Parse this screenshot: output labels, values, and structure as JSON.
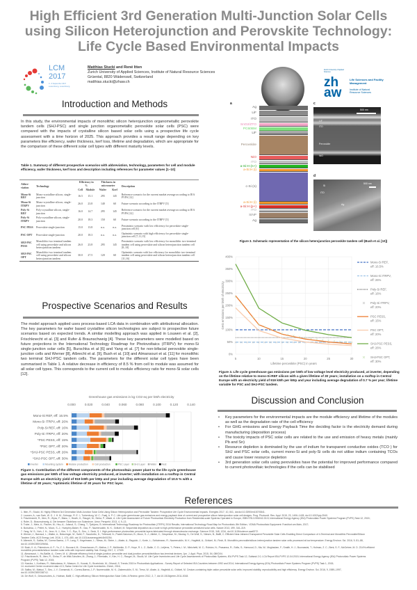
{
  "title": [
    "High Efficient 3rd Generation Multi-Junction Solar Cells",
    "using Silicon Heterojunction and Perovskite Technology:",
    "Life Cycle Based Environmental Impacts"
  ],
  "header": {
    "conf_logo": "LCM",
    "conf_year": "2017",
    "conf_dates": "3 - 6 September 2017",
    "conf_place": "Luxembourg, Luxembourg",
    "author1": "Matthias Stucki",
    "author_and": " and René Itten",
    "affiliation": "Zurich University of Applied Sciences, Institute of Natural Resource Sciences",
    "address": "Grüental, 8820 Wädenswil, Switzerland",
    "email": "matthias.stucki@zhaw.ch",
    "zhaw_small": "Zurich University of Applied Sciences",
    "zhaw_logo": "zh aw",
    "zhaw_dept": "Life Sciences and Facility Management",
    "zhaw_inst": "Institute of Natural Resource Sciences",
    "brand_color": "#0064a6"
  },
  "intro": {
    "heading": "Introduction and Methods",
    "text": "In this study, the environmental impacts of monolithic silicon heterojunction organometallic perovskite tandem cells (SHJ-PSC) and single junction organometallic perovskite solar cells (PSC) were compared with the impacts of crystalline silicon based solar cells using a prospective life cycle assessment with a time horizon of 2025. This approach provides a result range depending on key parameters like efficiency, wafer thickness, kerf loss, lifetime and degradation, which are appropriate for the comparison of these different solar cell types with different maturity levels."
  },
  "table": {
    "caption": "Table 1. Summary of different prospective scenarios with abbreviation, technology, parameters for cell and module efficiency, wafer thickness, kerf loss and description including references for parameter values [1–10]",
    "headers": {
      "abbr": "Abbre-viation",
      "tech": "Technology",
      "eff": "Efficiency in %",
      "cell": "Cell",
      "module": "Module",
      "thick": "Thickness in micrometer",
      "wafer": "Wafer",
      "kerf": "Kerf",
      "desc": "Description"
    },
    "rows": [
      [
        "Mono-Si REF",
        "Mono-crystalline silicon, single-junction",
        "16.5",
        "15.1",
        "295",
        "145",
        "Reference scenario for the current market average according to IEA PVPS [12]"
      ],
      [
        "Mono-Si ITRPV",
        "Mono-crystalline silicon, single-junction",
        "26.0",
        "23.8",
        "140",
        "60",
        "Future scenario according to the ITRPV [5]"
      ],
      [
        "Poly-Si REF",
        "Poly-crystalline silicon, single-junction",
        "16.0",
        "14.7",
        "295",
        "145",
        "Reference scenario for the current market average according to IEA PVPS [12]"
      ],
      [
        "Poly-Si ITRPV",
        "Poly-crystalline silicon, single-junction",
        "20.0",
        "18.3",
        "150",
        "60",
        "Future scenario according to the ITRPV [5]"
      ],
      [
        "PSC PESS",
        "Perovskite single-junction",
        "15.0",
        "13.8",
        "n.a.",
        "n.a.",
        "Pessimistic scenario with low efficiency for perovskite single-junction cell [6]"
      ],
      [
        "PSC OPT",
        "Perovskite single-junction",
        "20.0",
        "18.3",
        "n.a.",
        "n.a.",
        "Optimistic scenario with high efficiency for perovskite single-junction cell [7,11,15]"
      ],
      [
        "SHJ-PSC PESS",
        "Monolithic two terminal tandem cell using perovskite and silicon heterojunction tandem",
        "26.0",
        "23.8",
        "295",
        "145",
        "Pessimistic scenario with low efficiency for monolithic two-terminal tandem cell using perovskite and silicon heterojunction tandem cell [8–10]"
      ],
      [
        "SHJ-PSC OPT",
        "Monolithic two terminal tandem cell using perovskite and silicon heterojunction tandem",
        "30.0",
        "27.5",
        "120",
        "60",
        "Optimistic scenario with low efficiency for monolithic two-terminal tandem cell using perovskite and silicon heterojunction tandem cell [11,16]"
      ]
    ]
  },
  "results": {
    "heading": "Prospective Scenarios and Results",
    "text": "The model approach applied uses process-based LCA data in combination with attributional allocation. The key parameters for wafer based crystalline silicon technologies are subject to prospective future scenarios based on expected trends. A similar modelling approach was applied in Louwen et al. [2], Frischknecht et al. [3] and Rufer & Braunschweig [4]. These key parameters were modelled based on future projections in the International Technology Roadmap for Photovoltaics (ITRPV) for mono-Si single-junction solar cells [5], Burschka et al [6] and Yang et al. [7] for non-bifacial perovskite single-junction cells and Werner [8], Albrecht et al. [9], Bush et al. [10] and Almansouri et al. [11] for monolithic two terminal SHJ-PSC tandem cells. The parameters for the different solar cell types have been summarised in Table 1. A relative decrease in efficiency of 8.5 % from cell to module was assumed for all solar cell types. This corresponds to the current cell to module efficiency ratio for mono-Si solar cells [12].",
    "fig1_caption": "Figure 1. Contribution of the different components of the photovoltaic power plant to the life cycle greenhouse gas emissions per kWh of low voltage electricity produced, at inverter; with installation on a rooftop in Central Europe with an electricity yield of 919 kWh per kWp and year including average degradation of 10.5 % with a lifetime of 30 years; *optimistic lifetime of 30 years for PSC layer."
  },
  "fig3a": {
    "label_a": "a",
    "label_c": "c",
    "label_d": "d",
    "layers": [
      {
        "name": "Ag",
        "color": "#6b6b6b",
        "text": "#666"
      },
      {
        "name": "LiF",
        "color": "#8a8a8a",
        "text": "#666"
      },
      {
        "name": "ITO",
        "color": "#bdbdbd",
        "text": "#666"
      },
      {
        "name": "SnO2/ZTO",
        "color": "#f4a6c8",
        "text": "#e986b4"
      },
      {
        "name": "PC60BM",
        "color": "#7fe07f",
        "text": "#6dd66d"
      },
      {
        "name": "LiF",
        "color": "#8a8a8a",
        "text": "#666"
      },
      {
        "name": "Perovskite",
        "color": "#a78463",
        "text": "#9a8a7a"
      },
      {
        "name": "NiO",
        "color": "#e85a5a",
        "text": "#e04848"
      },
      {
        "name": "ITO",
        "color": "#bdbdbd",
        "text": "#aaa"
      },
      {
        "name": "a-Si:H (n+)",
        "color": "#1fb51f",
        "text": "#1fa51f"
      },
      {
        "name": "a-Si:H (i)",
        "color": "#f0962a",
        "text": "#f0962a"
      },
      {
        "name": "c-Si (n)",
        "color": "#6f68b0",
        "text": "#666"
      },
      {
        "name": "a-Si:H (i)",
        "color": "#f0962a",
        "text": "#f0962a"
      },
      {
        "name": "a-Si:H (p+)",
        "color": "#d8302a",
        "text": "#d8302a"
      },
      {
        "name": "ITO",
        "color": "#bdbdbd",
        "text": "#aaa"
      },
      {
        "name": "SiNP",
        "color": "#9c8068",
        "text": "#888"
      },
      {
        "name": "Ag",
        "color": "#6b6b6b",
        "text": "#666"
      }
    ],
    "sem_c_scale": "500 nm",
    "sem_c_labels": [
      "LiF",
      "ITO",
      "Perovskite",
      "NiO"
    ],
    "sem_d_scale": "500 nm",
    "sem_d_labels": [
      "Si",
      "ITO",
      "Ag"
    ],
    "caption": "Figure 3. Schematic representation of the silicon heterojunction perovskite tandem cell (Bush et al. [10])"
  },
  "fig3b_caption": "Figure 3. Life cycle greenhouse gas emissions per kWh of low voltage level electricity produced, at inverter, depending on the lifetime relative to mono-Si-REF silicon with a given lifetime of 30 years; installation on a rooftop in Central Europe with an electricity yield of 919 kWh per kWp and year including average degradation of 0.7 % per year; lifetime variable for PSC and SHJ-PSC tandem.",
  "discussion": {
    "heading": "Discussion and Conclusion",
    "bullets": [
      "Key parameters for the environmental impacts are the module efficiency and lifetime of the modules as well as the degradation rate of the cell efficiency",
      "For GHG emissions and Energy Payback Time the deciding factor is the electricity demand during manufacturing (deposition process)",
      "The toxicity impacts of PSC solar cells are related to the use and emission of heavy metals (mainly Pb and Sn)",
      "Resource depletion is dominated by the use of indium for transparent conductive oxides (TCO ) for SHJ and PSC solar cells, current mono-Si and poly-Si cells do not utilise indium containing TCOs and cause lower resource depletion",
      "3rd generation solar cells using perovskites have the potential for improved performance compared to current photovoltaic technologies if the cells can be stabilised"
    ]
  },
  "references": {
    "heading": "References",
    "items": [
      "1.    Itten, R.; Stucki, M. Highly Efficient 3rd Generation Multi-Junction Solar Cells Using Silicon Heterojunction and Perovskite Tandem: Prospective Life Cycle Environmental Impacts. Energies 2017, 10, 841, doi:doi:10.3390/en10070841.",
      "2.    Louwen, A.; van Sark, W. G. J. H. M.; Schropp, R. E. I.; Turkenburg, W. C.; Faaij, A. P. C. Life-cycle greenhouse gas emissions and energy payback time of current and prospective silicon heterojunction solar cell designs. Prog. Photovolt. Res. Appl. 2015, 23, 1406–1428, doi:10.1002/pip.2540.",
      "3.    Frischknecht, R.; Itten, R.; Wyss, F.; Blanc, I.; Heath, G.; Raugei, M.; Sinha, P.; Wade, A. Life Cycle Assessment of Future Photovoltaic Electricity Production from Residential-scale Systems Operated in Europe; ISBN 978-3-906042-30-5; International Energy Agency (IEA) Photovoltaic Power Systems Program (PVPS) Task 12, 2015;",
      "4.    Rufer, D.; Braunschweig, A. Die bessere Ökobilanz von  Solarstrom. Umw. Perspekt. 2013, 4, 9–13.",
      "5.    Trube, J.; Metz, A.; Fischer, M.; Hsu, A.; Julsrud, S.; Chang, T.; Tjahjono, B. International Technology Roadmap for Photovoltaic (ITRPV) 2016 Results; International Technology Road Map for Photovoltaic; 8th Edition.; VDMA Photovoltaic Equipment: Frankfurt am Main, 2017;",
      "6.    Burschka, J.; Pellet, N.; Moon, S.-J.; Humphry-Baker, R.; Gao, P.; Nazeeruddin, M. K.; Grätzel, M. Sequential deposition as a route to high-performance perovskite-sensitized solar cells. Nature 2013, 499, 316–319.",
      "7.    Yang, W. S.; Noh, J. H.; Jeon, N. J.; Kim, Y. C.; Ryu, S.; Seo, J.; Seok, S. I. High-performance photovoltaic perovskite layers fabricated through intramolecular exchange. Science 2015, 348, 1234, doi:10.1126/science.aaa9272.",
      "8.    Werner, J.; Barraud, L.; Walter, A.; Bräuninger, M.; Sahli, F.; Sacchetto, D.; Tétreault, N.; Paviet-Salomon, B.; Moon, S.-J.; Allebé, C.; Despeisse, M.; Nicolay, S.; De Wolf, S.; Niesen, B.; Ballif, C. Efficient Near-Infrared-Transparent Perovskite Solar Cells Enabling Direct Comparison of 4-Terminal and Monolithic Perovskite/Silicon",
      "Tandem Cells. ACS Energy Lett. 2016, 1, 474–480, doi:10.1021/acsenergylett.6b00254.",
      "9.    Albrecht, S.; Saliba, M.; Correa Baena, J. P.; Lang, F.; Kegelmann, L.; Mews, M.; Steier, L.; Abate, A.; Rappich, J.; Korte, L.; Schlatmann, R.; Nazeeruddin, M. K.; Hagfeldt, A.; Grätzel, M.; Rech, B. Monolithic perovskite/silicon-heterojunction tandem solar cells processed at low temperature. Energy Environ. Sci. 2016, 9, 81–88,",
      "doi:10.1039/C5EE02965A.",
      "10.   Bush, K. A.; Palmstrom, A. F.; Yu, Z. J.; Boccard, M.; Cheacharoen, R.; Mailoa, J. P.; McMeekin, D. P.; Hoye, R. L. Z.; Bailie, C. D.; Leijtens, T.; Peters, I. M.; Minichetti, M. C.; Rolston, N.; Prasanna, R.; Sofia, S.; Harwood, D.; Ma, W.; Moghadam, F.; Snaith, H. J.; Buonassisi, T.; Holman, Z. C.; Bent, S. F.; McGehee, M. D. 23.6%-efficient",
      "monolithic perovskite/silicon tandem solar cells with improved stability. Nat. Energy 2017, 2, 17009.",
      "11.   Almansouri, I.; Ho-Baillie, A.; Green, M. A. Ultimate efficiency limit of single-junction perovskite and dual-junction perovskite/silicon two-terminal devices. Jpn. J. Appl. Phys. 2015, 54, 08KD04.",
      "12.   Frischknecht, R.; Itten, R.; Sinha, P.; de Wild-Scholten, M.; Zhang, J.; Fthenakis, V.; Kim, H. C.; Raugei, M.; Stucki, M. Life Cycle Inventories and Life Cycle Assessments of Photovoltaic Systems; IEA PVPS Task 12, Subtask 2.0, LCA Report IEA-PVPS 12-04:2015; International Energy Agency (IEA) Photovoltaic Power Systems",
      "Program (PVPS) Task 12, 2015;",
      "13.   Kazuka, I.; Kurihara, R.; Matsukawa, H.; Masson, G.; Kowak, S.; Brunisholz, M.; Orlandi, S. Trends 2015 in Photovoltaic Applications - Survey Report of Selected IEA Countries between 1992 and 2014; International Energy Agency (IEA) Photovoltaic Power Systems Program (PVPS) Task 1, 2015;",
      "14.   ecoinvent Centre ecoinvent data v3.3; Swiss Centre for Life Cycle Inventories: Zürich, 2016;",
      "15.   Saliba, M.; Matsui, T.; Seo, J.-Y.; Domanski, K.; Correa-Baena, J.-P.; Nazeeruddin, M. K.; Zakeeruddin, S. M.; Tress, W.; Abate, A.; Hagfeldt, A.; Grätzel, M. Cesium-containing triple cation perovskite solar cells: improved stability, reproducibility and high efficiency. Energy Environ. Sci. 2016, 9, 1989–1997,",
      "doi:10.1039/C5EE03874J.",
      "16.   De Wolf, S.; Descoeudres, A.; Holman, Ballif, C. High-efficiency Silicon Heterojunction Solar Cells: A Review. green 2012, 2, 7, doi:10.1515/green-2011-0018."
    ]
  },
  "chart_data": [
    {
      "type": "bar",
      "stacked": true,
      "orientation": "horizontal",
      "title": "Greenhouse gas emissions in kg CO2-eq per kWh electricity",
      "xlim": [
        0,
        0.14
      ],
      "xticks": [
        "0.000",
        "0.020",
        "0.040",
        "0.060",
        "0.080",
        "0.100",
        "0.120",
        "0.140"
      ],
      "grid": true,
      "legend_position": "bottom",
      "categories": [
        "Mono-Si REF, eff: 16.5%",
        "Mono-Si ITRPV, eff: 26%",
        "Poly-Si REF, eff: 16%",
        "Poly-Si ITRPV, eff: 20%",
        "*PSC PESS, eff: 15%",
        "*PSC OPT, eff: 20%",
        "*SHJ-PSC PESS, eff: 26%",
        "*SHJ-PSC OPT, eff: 30%"
      ],
      "series": [
        {
          "name": "Inverter",
          "color": "#4a86c8",
          "values": [
            0.006,
            0.006,
            0.006,
            0.006,
            0.006,
            0.006,
            0.006,
            0.006
          ]
        },
        {
          "name": "Mounting system",
          "color": "#b9d3ee",
          "values": [
            0.015,
            0.0093,
            0.0147,
            0.012,
            0.016,
            0.012,
            0.0093,
            0.0079
          ]
        },
        {
          "name": "Module production",
          "color": "#ed7d31",
          "values": [
            0.0144,
            0.0098,
            0.0171,
            0.0139,
            0.0185,
            0.0139,
            0.0093,
            0.0079
          ]
        },
        {
          "name": "Cell production",
          "color": "#f8cbad",
          "values": [
            0.003,
            0.002,
            0.0033,
            0.0027,
            0.0027,
            0.002,
            0.0014,
            0.0014
          ]
        },
        {
          "name": "PSC Layer",
          "color": "#4caf3a",
          "values": [
            0,
            0,
            0,
            0,
            0.0035,
            0.0033,
            0.0019,
            0.0019
          ]
        },
        {
          "name": "SHJ Layer",
          "color": "#a9d18e",
          "values": [
            0,
            0,
            0,
            0,
            0.0008,
            0,
            0.0014,
            0.0011
          ]
        },
        {
          "name": "Wafer",
          "color": "#b0b0b0",
          "values": [
            0.072,
            0.024,
            0.032,
            0.016,
            0,
            0,
            0.0468,
            0.0182
          ]
        },
        {
          "name": "Rest",
          "color": "#000000",
          "values": [
            0.0046,
            0.0044,
            0.0046,
            0.0046,
            0.0016,
            0.0022,
            0.0016,
            0.0019
          ]
        }
      ]
    },
    {
      "type": "line",
      "xlabel": "Lifetime perovskite (PSC) in years",
      "ylabel": "GHG emissions per kWh of electricity",
      "xlim": [
        5,
        30
      ],
      "ylim": [
        0,
        400
      ],
      "xticks": [
        "5",
        "10",
        "15",
        "20",
        "25",
        "30"
      ],
      "yticks": [
        "0%",
        "50%",
        "100%",
        "150%",
        "200%",
        "250%",
        "300%",
        "350%",
        "400%"
      ],
      "grid": true,
      "legend_position": "right",
      "x": [
        5,
        10,
        15,
        20,
        25,
        30
      ],
      "series": [
        {
          "name": "Mono-Si REF, eff: 16.5%",
          "color": "#4472c4",
          "style": "dashed",
          "values": [
            100,
            100,
            100,
            100,
            100,
            100
          ]
        },
        {
          "name": "Mono-Si ITRPV, eff: 26%",
          "color": "#9dc3e6",
          "style": "dashed",
          "values": [
            49,
            49,
            49,
            49,
            49,
            49
          ]
        },
        {
          "name": "Poly-Si REF, eff: 16%",
          "color": "#404040",
          "style": "dotted",
          "values": [
            68,
            68,
            68,
            68,
            68,
            68
          ]
        },
        {
          "name": "Poly-Si ITRPV, eff: 20%",
          "color": "#bfbfbf",
          "style": "x-markers",
          "values": [
            48,
            48,
            48,
            48,
            48,
            48
          ]
        },
        {
          "name": "PSC PESS, eff: 15%",
          "color": "#ed7d31",
          "style": "solid",
          "values": [
            240,
            121,
            82,
            62,
            50,
            42
          ]
        },
        {
          "name": "PSC OPT, eff: 20%",
          "color": "#f8cbad",
          "style": "solid",
          "values": [
            190,
            97,
            66,
            50,
            41,
            35
          ]
        },
        {
          "name": "SHJ-PSC PESS, eff: 26%",
          "color": "#70ad47",
          "style": "solid",
          "values": [
            370,
            189,
            128,
            98,
            80,
            68
          ]
        },
        {
          "name": "SHJ-PSC OPT, eff: 30%",
          "color": "#c5e0b4",
          "style": "x-markers",
          "values": [
            235,
            123,
            85,
            67,
            56,
            48
          ]
        }
      ]
    }
  ]
}
